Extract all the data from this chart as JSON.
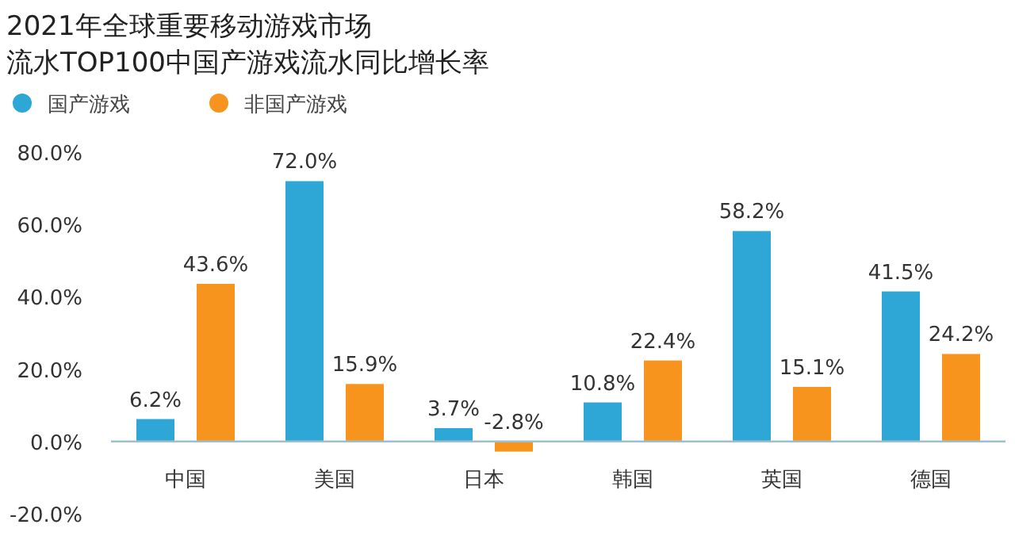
{
  "chart_data": {
    "type": "bar",
    "title": "2021年全球重要移动游戏市场",
    "subtitle": "流水TOP100中国产游戏流水同比增长率",
    "categories": [
      "中国",
      "美国",
      "日本",
      "韩国",
      "英国",
      "德国"
    ],
    "series": [
      {
        "name": "国产游戏",
        "color": "#2ea7d6",
        "values": [
          6.2,
          72.0,
          3.7,
          10.8,
          58.2,
          41.5
        ],
        "value_labels": [
          "6.2%",
          "72.0%",
          "3.7%",
          "10.8%",
          "58.2%",
          "41.5%"
        ]
      },
      {
        "name": "非国产游戏",
        "color": "#f7941d",
        "values": [
          43.6,
          15.9,
          -2.8,
          22.4,
          15.1,
          24.2
        ],
        "value_labels": [
          "43.6%",
          "15.9%",
          "-2.8%",
          "22.4%",
          "15.1%",
          "24.2%"
        ]
      }
    ],
    "ylim": [
      -20,
      80
    ],
    "yticks": [
      {
        "value": -20,
        "label": "-20.0%"
      },
      {
        "value": 0,
        "label": "0.0%"
      },
      {
        "value": 20,
        "label": "20.0%"
      },
      {
        "value": 40,
        "label": "40.0%"
      },
      {
        "value": 60,
        "label": "60.0%"
      },
      {
        "value": 80,
        "label": "80.0%"
      }
    ],
    "grid": false,
    "legend": "top left"
  }
}
